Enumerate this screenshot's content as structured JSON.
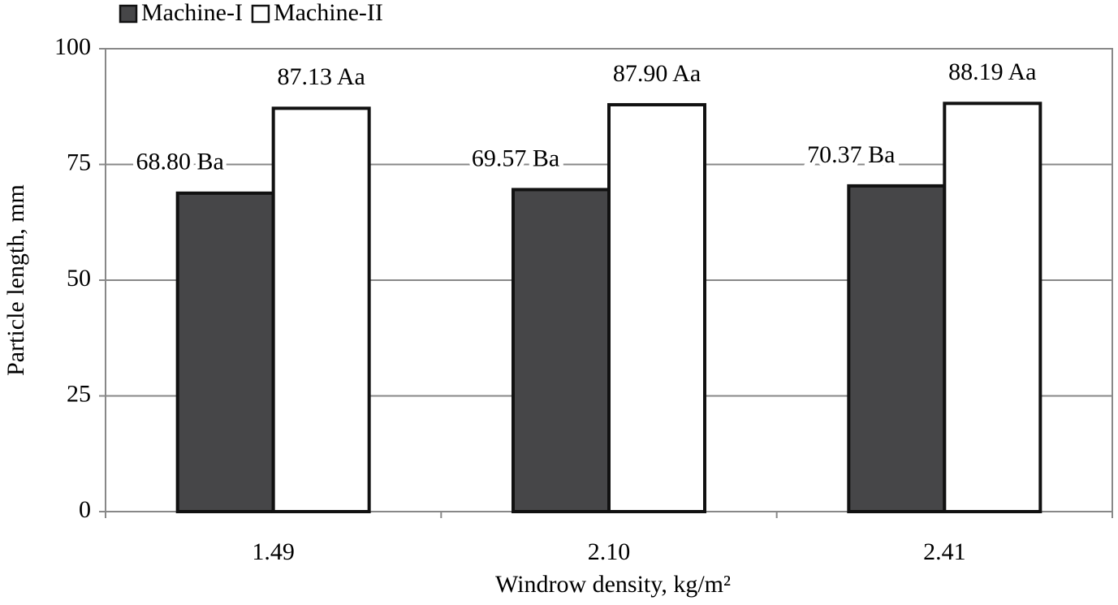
{
  "chart_data": {
    "type": "bar",
    "categories": [
      "1.49",
      "2.10",
      "2.41"
    ],
    "series": [
      {
        "name": "Machine-I",
        "color": "#464648",
        "values": [
          68.8,
          69.57,
          70.37
        ],
        "value_labels": [
          "68.80 Ba",
          "69.57 Ba",
          "70.37 Ba"
        ]
      },
      {
        "name": "Machine-II",
        "color": "#ffffff",
        "values": [
          87.13,
          87.9,
          88.19
        ],
        "value_labels": [
          "87.13 Aa",
          "87.90 Aa",
          "88.19 Aa"
        ]
      }
    ],
    "x_label": "Windrow density, kg/m²",
    "y_label": "Particle length,  mm",
    "ylim": [
      0,
      100
    ],
    "yticks": [
      0,
      25,
      50,
      75,
      100
    ],
    "grid": true,
    "legend": "top-left"
  }
}
